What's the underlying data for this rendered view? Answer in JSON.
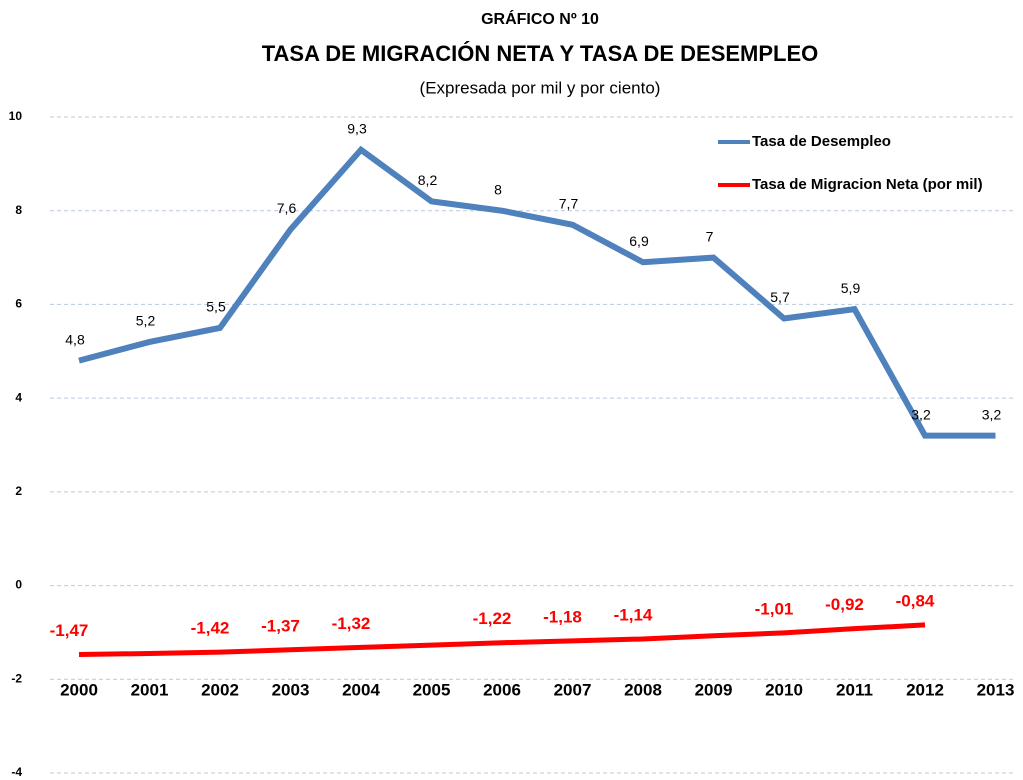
{
  "chart_data": {
    "type": "line",
    "supertitle": "GRÁFICO Nº  10",
    "title": "TASA DE MIGRACIÓN NETA Y TASA DE DESEMPLEO",
    "subtitle": "(Expresada por mil y por ciento)",
    "categories": [
      "2000",
      "2001",
      "2002",
      "2003",
      "2004",
      "2005",
      "2006",
      "2007",
      "2008",
      "2009",
      "2010",
      "2011",
      "2012",
      "2013"
    ],
    "series": [
      {
        "name": "Tasa de Desempleo",
        "color": "#4f81bd",
        "values": [
          4.8,
          5.2,
          5.5,
          7.6,
          9.3,
          8.2,
          8,
          7.7,
          6.9,
          7,
          5.7,
          5.9,
          3.2,
          3.2
        ],
        "value_labels": [
          "4,8",
          "5,2",
          "5,5",
          "7,6",
          "9,3",
          "8,2",
          "8",
          "7,7",
          "6,9",
          "7",
          "5,7",
          "5,9",
          "3,2",
          "3,2"
        ]
      },
      {
        "name": "Tasa de Migracion Neta (por mil)",
        "color": "#ff0000",
        "values": [
          -1.47,
          -1.45,
          -1.42,
          -1.37,
          -1.32,
          -1.27,
          -1.22,
          -1.18,
          -1.14,
          -1.07,
          -1.01,
          -0.92,
          -0.84,
          null
        ],
        "value_labels": [
          "-1,47",
          null,
          "-1,42",
          "-1,37",
          "-1,32",
          null,
          "-1,22",
          "-1,18",
          "-1,14",
          null,
          "-1,01",
          "-0,92",
          "-0,84",
          null
        ]
      }
    ],
    "ylim": [
      -4,
      10
    ],
    "yticks": [
      -4,
      -2,
      0,
      2,
      4,
      6,
      8,
      10
    ],
    "grid": true,
    "legend": "top-right"
  }
}
